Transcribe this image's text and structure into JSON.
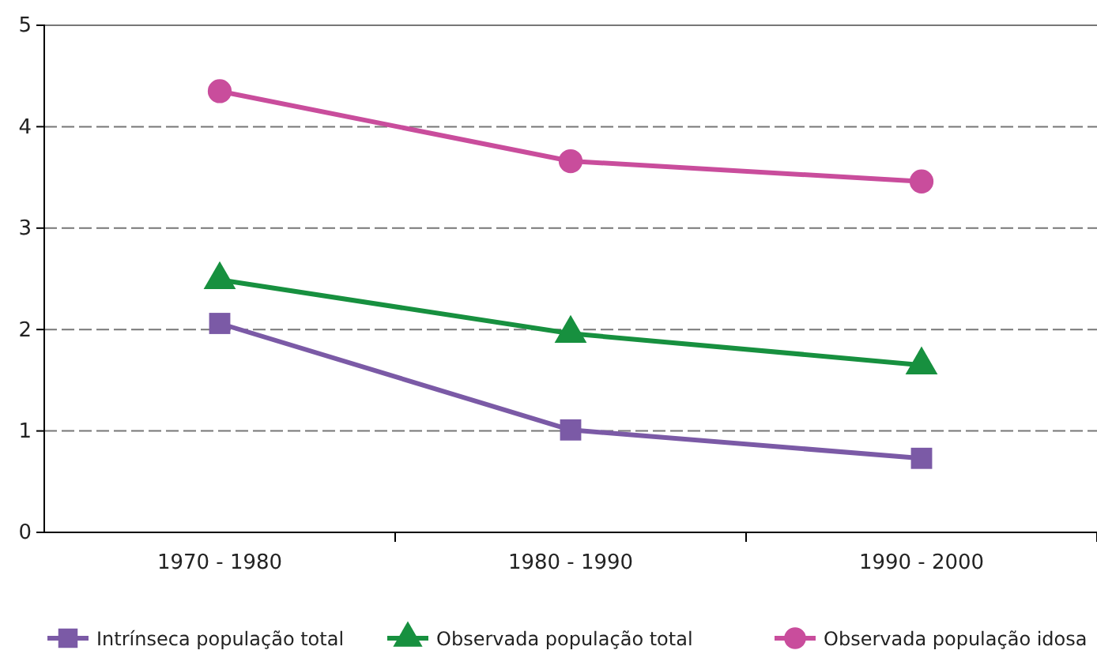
{
  "chart_data": {
    "type": "line",
    "categories": [
      "1970 - 1980",
      "1980 - 1990",
      "1990 - 2000"
    ],
    "series": [
      {
        "name": "Intrínseca população total",
        "color": "#7b5aa6",
        "marker": "square",
        "values": [
          2.06,
          1.01,
          0.73
        ]
      },
      {
        "name": "Observada população total",
        "color": "#17903f",
        "marker": "triangle",
        "values": [
          2.49,
          1.96,
          1.65
        ]
      },
      {
        "name": "Observada população idosa",
        "color": "#c94d9c",
        "marker": "circle",
        "values": [
          4.35,
          3.66,
          3.46
        ]
      }
    ],
    "ylim": [
      0,
      5
    ],
    "yticks": [
      0,
      1,
      2,
      3,
      4,
      5
    ],
    "grid": "y",
    "legend": "bottom"
  }
}
